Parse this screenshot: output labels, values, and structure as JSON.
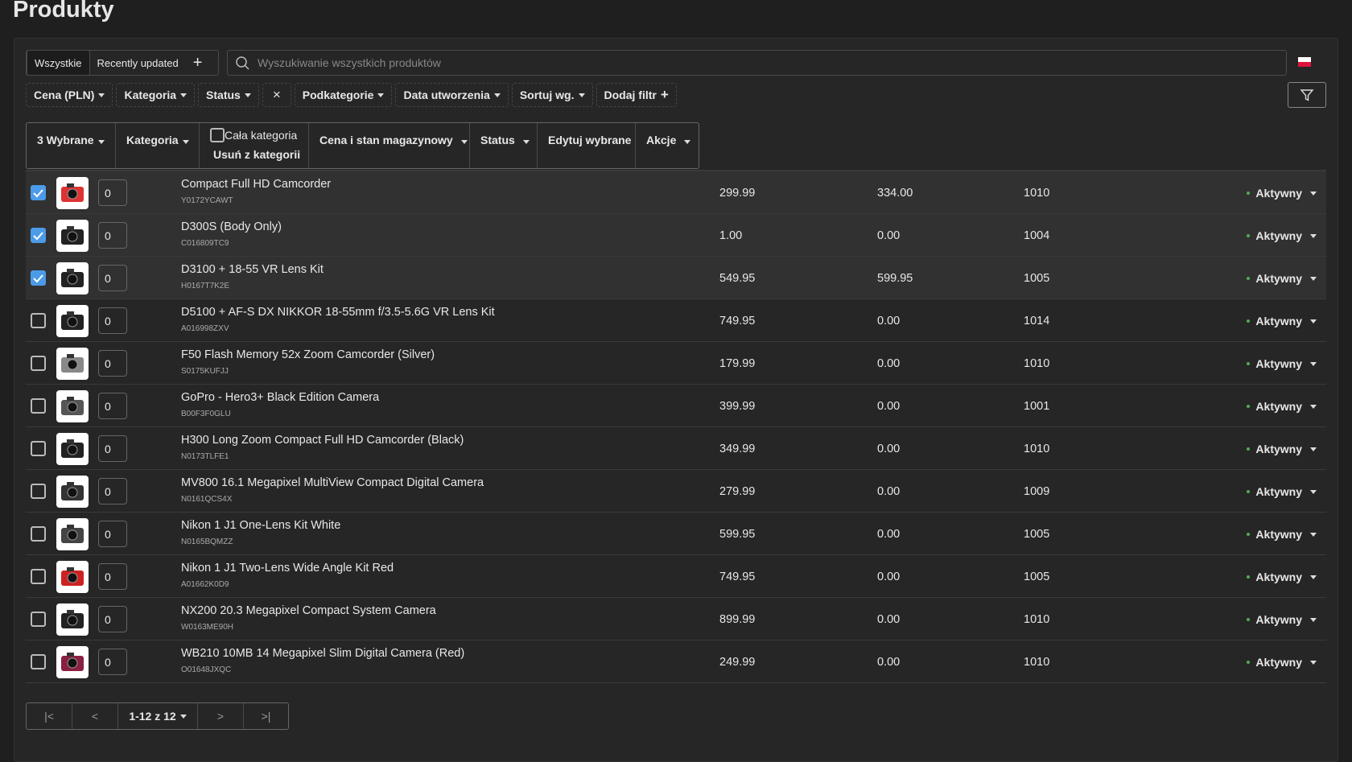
{
  "header": {
    "title": "Produkty"
  },
  "tabs": [
    "Wszystkie",
    "Recently updated"
  ],
  "search": {
    "placeholder": "Wyszukiwanie wszystkich produktów"
  },
  "filters": [
    "Cena (PLN)",
    "Kategoria",
    "Status",
    "Podkategorie",
    "Data utworzenia",
    "Sortuj wg.",
    "Dodaj filtr"
  ],
  "toolbar": {
    "selected": "3 Wybrane",
    "category": "Kategoria",
    "whole_category": "Cała kategoria",
    "remove_from_category": "Usuń z kategorii",
    "price_stock": "Cena i stan magazynowy",
    "status": "Status",
    "edit_selected": "Edytuj wybrane",
    "actions": "Akcje"
  },
  "table": {
    "rows": [
      {
        "checked": true,
        "qty": "0",
        "name": "Compact Full HD Camcorder",
        "sku": "Y0172YCAWT",
        "price": "299.99",
        "special": "334.00",
        "stock": "1010",
        "status": "Aktywny"
      },
      {
        "checked": true,
        "qty": "0",
        "name": "D300S (Body Only)",
        "sku": "C016809TC9",
        "price": "1.00",
        "special": "0.00",
        "stock": "1004",
        "status": "Aktywny"
      },
      {
        "checked": true,
        "qty": "0",
        "name": "D3100 + 18-55 VR Lens Kit",
        "sku": "H0167T7K2E",
        "price": "549.95",
        "special": "599.95",
        "stock": "1005",
        "status": "Aktywny"
      },
      {
        "checked": false,
        "qty": "0",
        "name": "D5100 + AF-S DX NIKKOR 18-55mm f/3.5-5.6G VR Lens Kit",
        "sku": "A016998ZXV",
        "price": "749.95",
        "special": "0.00",
        "stock": "1014",
        "status": "Aktywny"
      },
      {
        "checked": false,
        "qty": "0",
        "name": "F50 Flash Memory 52x Zoom Camcorder (Silver)",
        "sku": "S0175KUFJJ",
        "price": "179.99",
        "special": "0.00",
        "stock": "1010",
        "status": "Aktywny"
      },
      {
        "checked": false,
        "qty": "0",
        "name": "GoPro - Hero3+ Black Edition Camera",
        "sku": "B00F3F0GLU",
        "price": "399.99",
        "special": "0.00",
        "stock": "1001",
        "status": "Aktywny"
      },
      {
        "checked": false,
        "qty": "0",
        "name": "H300 Long Zoom Compact Full HD Camcorder (Black)",
        "sku": "N0173TLFE1",
        "price": "349.99",
        "special": "0.00",
        "stock": "1010",
        "status": "Aktywny"
      },
      {
        "checked": false,
        "qty": "0",
        "name": "MV800 16.1 Megapixel MultiView Compact Digital Camera",
        "sku": "N0161QCS4X",
        "price": "279.99",
        "special": "0.00",
        "stock": "1009",
        "status": "Aktywny"
      },
      {
        "checked": false,
        "qty": "0",
        "name": "Nikon 1 J1 One-Lens Kit White",
        "sku": "N0165BQMZZ",
        "price": "599.95",
        "special": "0.00",
        "stock": "1005",
        "status": "Aktywny"
      },
      {
        "checked": false,
        "qty": "0",
        "name": "Nikon 1 J1 Two-Lens Wide Angle Kit Red",
        "sku": "A01662K0D9",
        "price": "749.95",
        "special": "0.00",
        "stock": "1005",
        "status": "Aktywny"
      },
      {
        "checked": false,
        "qty": "0",
        "name": "NX200 20.3 Megapixel Compact System Camera",
        "sku": "W0163ME90H",
        "price": "899.99",
        "special": "0.00",
        "stock": "1010",
        "status": "Aktywny"
      },
      {
        "checked": false,
        "qty": "0",
        "name": "WB210 10MB 14 Megapixel Slim Digital Camera (Red)",
        "sku": "O01648JXQC",
        "price": "249.99",
        "special": "0.00",
        "stock": "1010",
        "status": "Aktywny"
      }
    ]
  },
  "pagination": {
    "range": "1-12 z 12"
  }
}
